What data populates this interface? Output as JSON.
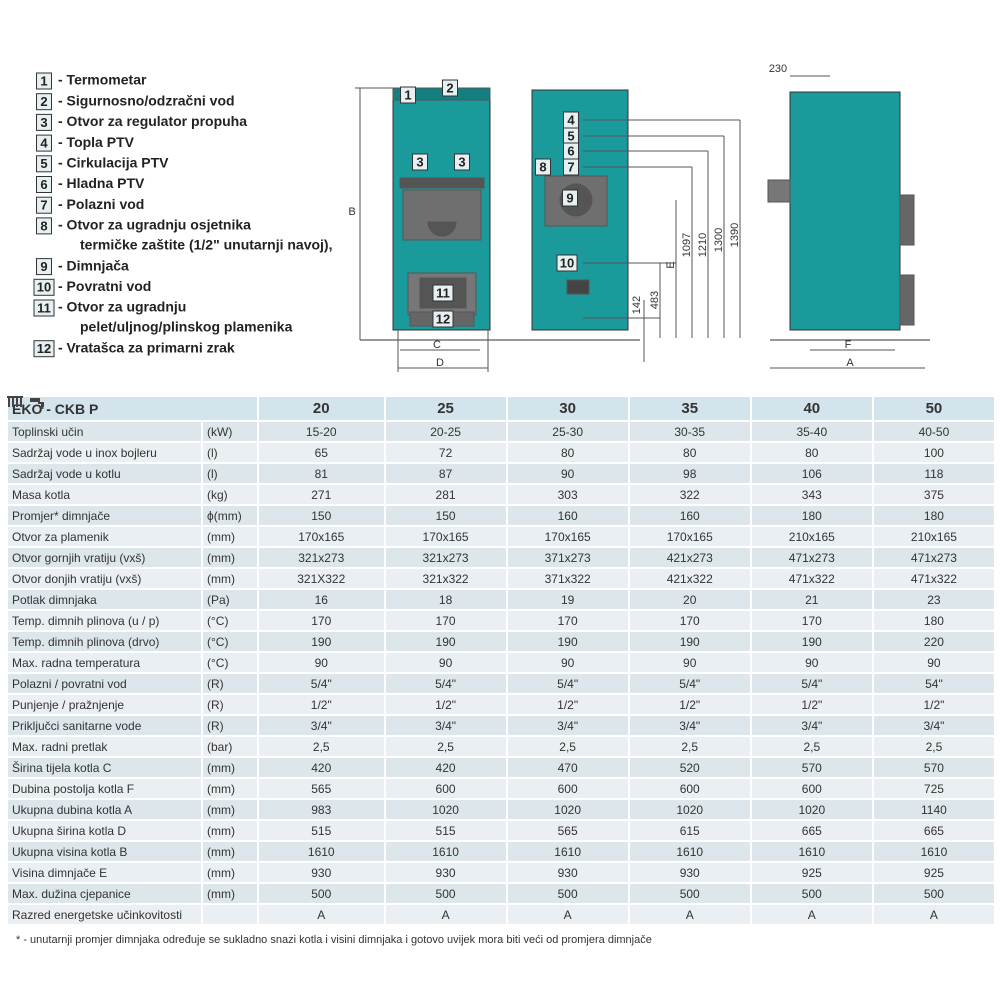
{
  "legend": [
    {
      "number": "1",
      "lines": [
        "- Termometar"
      ]
    },
    {
      "number": "2",
      "lines": [
        "- Sigurnosno/odzračni vod"
      ]
    },
    {
      "number": "3",
      "lines": [
        "- Otvor za regulator propuha"
      ]
    },
    {
      "number": "4",
      "lines": [
        "- Topla PTV"
      ]
    },
    {
      "number": "5",
      "lines": [
        "- Cirkulacija PTV"
      ]
    },
    {
      "number": "6",
      "lines": [
        "- Hladna PTV"
      ]
    },
    {
      "number": "7",
      "lines": [
        "- Polazni vod"
      ]
    },
    {
      "number": "8",
      "lines": [
        "- Otvor za ugradnju osjetnika",
        "termičke zaštite (1/2\" unutarnji navoj),"
      ]
    },
    {
      "number": "9",
      "lines": [
        "- Dimnjača"
      ]
    },
    {
      "number": "10",
      "lines": [
        "- Povratni vod"
      ]
    },
    {
      "number": "11",
      "lines": [
        "- Otvor za ugradnju",
        "pelet/uljnog/plinskog plamenika"
      ]
    },
    {
      "number": "12",
      "lines": [
        "- Vratašca za primarni zrak"
      ]
    }
  ],
  "diagram": {
    "front": {
      "marks": [
        "1",
        "2",
        "3",
        "3",
        "11",
        "12"
      ],
      "dims": [
        "B",
        "C",
        "D"
      ]
    },
    "middle": {
      "marks": [
        "4",
        "5",
        "6",
        "7",
        "8",
        "9",
        "10"
      ],
      "dims": [
        "142",
        "483",
        "E",
        "1097",
        "1210",
        "1300",
        "1390"
      ]
    },
    "side": {
      "dims": [
        "230",
        "F",
        "A"
      ]
    }
  },
  "table": {
    "title": "EKO - CKB P",
    "models": [
      "20",
      "25",
      "30",
      "35",
      "40",
      "50"
    ],
    "rows": [
      {
        "name": "Toplinski učin",
        "unit": "(kW)",
        "values": [
          "15-20",
          "20-25",
          "25-30",
          "30-35",
          "35-40",
          "40-50"
        ]
      },
      {
        "name": "Sadržaj vode u inox bojleru",
        "unit": "(l)",
        "values": [
          "65",
          "72",
          "80",
          "80",
          "80",
          "100"
        ]
      },
      {
        "name": "Sadržaj vode u kotlu",
        "unit": "(l)",
        "values": [
          "81",
          "87",
          "90",
          "98",
          "106",
          "118"
        ]
      },
      {
        "name": "Masa kotla",
        "unit": "(kg)",
        "values": [
          "271",
          "281",
          "303",
          "322",
          "343",
          "375"
        ]
      },
      {
        "name": "Promjer* dimnjače",
        "unit": "ϕ(mm)",
        "values": [
          "150",
          "150",
          "160",
          "160",
          "180",
          "180"
        ]
      },
      {
        "name": "Otvor za plamenik",
        "unit": "(mm)",
        "values": [
          "170x165",
          "170x165",
          "170x165",
          "170x165",
          "210x165",
          "210x165"
        ]
      },
      {
        "name": "Otvor gornjih vratiju (vxš)",
        "unit": "(mm)",
        "values": [
          "321x273",
          "321x273",
          "371x273",
          "421x273",
          "471x273",
          "471x273"
        ]
      },
      {
        "name": "Otvor donjih vratiju (vxš)",
        "unit": "(mm)",
        "values": [
          "321X322",
          "321x322",
          "371x322",
          "421x322",
          "471x322",
          "471x322"
        ]
      },
      {
        "name": "Potlak dimnjaka",
        "unit": "(Pa)",
        "values": [
          "16",
          "18",
          "19",
          "20",
          "21",
          "23"
        ]
      },
      {
        "name": "Temp. dimnih plinova (u / p)",
        "unit": "(°C)",
        "values": [
          "170",
          "170",
          "170",
          "170",
          "170",
          "180"
        ]
      },
      {
        "name": "Temp. dimnih plinova (drvo)",
        "unit": "(°C)",
        "values": [
          "190",
          "190",
          "190",
          "190",
          "190",
          "220"
        ]
      },
      {
        "name": "Max. radna temperatura",
        "unit": "(°C)",
        "values": [
          "90",
          "90",
          "90",
          "90",
          "90",
          "90"
        ]
      },
      {
        "name": "Polazni / povratni vod",
        "unit": "(R)",
        "values": [
          "5/4\"",
          "5/4\"",
          "5/4\"",
          "5/4\"",
          "5/4\"",
          "54\""
        ]
      },
      {
        "name": "Punjenje / pražnjenje",
        "unit": "(R)",
        "values": [
          "1/2\"",
          "1/2\"",
          "1/2\"",
          "1/2\"",
          "1/2\"",
          "1/2\""
        ]
      },
      {
        "name": "Priključci sanitarne vode",
        "unit": "(R)",
        "values": [
          "3/4\"",
          "3/4\"",
          "3/4\"",
          "3/4\"",
          "3/4\"",
          "3/4\""
        ]
      },
      {
        "name": "Max. radni pretlak",
        "unit": "(bar)",
        "values": [
          "2,5",
          "2,5",
          "2,5",
          "2,5",
          "2,5",
          "2,5"
        ]
      },
      {
        "name": "Širina tijela kotla C",
        "unit": "(mm)",
        "values": [
          "420",
          "420",
          "470",
          "520",
          "570",
          "570"
        ]
      },
      {
        "name": "Dubina postolja kotla F",
        "unit": "(mm)",
        "values": [
          "565",
          "600",
          "600",
          "600",
          "600",
          "725"
        ]
      },
      {
        "name": "Ukupna dubina kotla A",
        "unit": "(mm)",
        "values": [
          "983",
          "1020",
          "1020",
          "1020",
          "1020",
          "1140"
        ]
      },
      {
        "name": "Ukupna širina kotla D",
        "unit": "(mm)",
        "values": [
          "515",
          "515",
          "565",
          "615",
          "665",
          "665"
        ]
      },
      {
        "name": "Ukupna visina kotla B",
        "unit": "(mm)",
        "values": [
          "1610",
          "1610",
          "1610",
          "1610",
          "1610",
          "1610"
        ]
      },
      {
        "name": "Visina dimnjače E",
        "unit": "(mm)",
        "values": [
          "930",
          "930",
          "930",
          "930",
          "925",
          "925"
        ]
      },
      {
        "name": "Max. dužina cjepanice",
        "unit": "(mm)",
        "values": [
          "500",
          "500",
          "500",
          "500",
          "500",
          "500"
        ]
      },
      {
        "name": "Razred energetske učinkovitosti",
        "values": [
          "A",
          "A",
          "A",
          "A",
          "A",
          "A"
        ]
      }
    ]
  },
  "footnote": "* - unutarnji promjer dimnjaka određuje se sukladno snazi kotla i visini dimnjaka i gotovo uvijek mora biti veći od promjera dimnjače"
}
